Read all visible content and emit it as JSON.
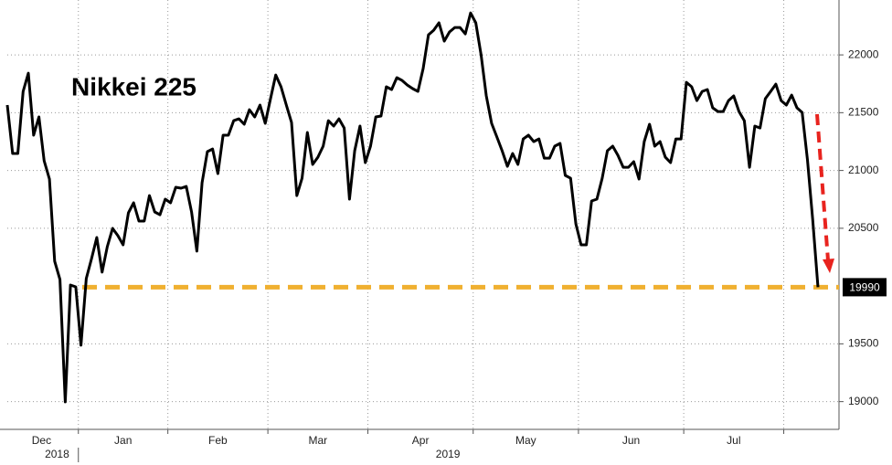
{
  "chart_data": {
    "type": "line",
    "title": "Nikkei 225",
    "color": "#000000",
    "months": [
      {
        "label": "Dec",
        "year": "2018",
        "values": [
          21566,
          21147,
          21147,
          21684,
          21842,
          21305,
          21463,
          21084,
          20926,
          20215,
          20057,
          18998,
          20009,
          19993
        ]
      },
      {
        "label": "Jan",
        "values": [
          19488,
          20065,
          20238,
          20420,
          20120,
          20341,
          20499,
          20436,
          20357,
          20633,
          20720,
          20562,
          20562,
          20783,
          20641,
          20617,
          20752
        ]
      },
      {
        "label": "Feb",
        "values": [
          20720,
          20855,
          20847,
          20862,
          20641,
          20302,
          20894,
          21163,
          21186,
          20973,
          21305,
          21305,
          21431,
          21447,
          21400,
          21526,
          21463,
          21566,
          21408
        ]
      },
      {
        "label": "Mar",
        "values": [
          21621,
          21826,
          21724,
          21566,
          21415,
          20783,
          20933,
          21329,
          21052,
          21115,
          21210,
          21431,
          21384,
          21447,
          21368,
          20752,
          21171,
          21384,
          21068
        ]
      },
      {
        "label": "Apr",
        "year": "2019",
        "values": [
          21210,
          21463,
          21471,
          21724,
          21700,
          21803,
          21779,
          21739,
          21708,
          21684,
          21881,
          22174,
          22213,
          22277,
          22119,
          22198,
          22237,
          22237,
          22182,
          22363
        ]
      },
      {
        "label": "May",
        "values": [
          22277,
          22000,
          21645,
          21408,
          21289,
          21171,
          21036,
          21147,
          21052,
          21273,
          21305,
          21250,
          21273,
          21107,
          21107,
          21210,
          21234,
          20957,
          20933,
          20538
        ]
      },
      {
        "label": "Jun",
        "values": [
          20357,
          20357,
          20736,
          20752,
          20933,
          21171,
          21210,
          21131,
          21028,
          21028,
          21076,
          20926,
          21250,
          21400,
          21210,
          21250,
          21115,
          21068,
          21273,
          21273
        ]
      },
      {
        "label": "Jul",
        "values": [
          21763,
          21724,
          21605,
          21684,
          21700,
          21542,
          21510,
          21510,
          21605,
          21645,
          21510,
          21431,
          21028,
          21384,
          21368,
          21621,
          21684,
          21747,
          21605
        ]
      },
      {
        "label": null,
        "values": [
          21566,
          21652,
          21542,
          21502,
          21092,
          20578,
          19990
        ]
      }
    ],
    "ylim": [
      18760,
      22475
    ],
    "yticks": [
      19000,
      19500,
      20500,
      21000,
      21500,
      22000
    ],
    "grid": true,
    "reference_value": 19990,
    "reference_color": "#f0b030",
    "arrow_color": "#e8231e"
  }
}
